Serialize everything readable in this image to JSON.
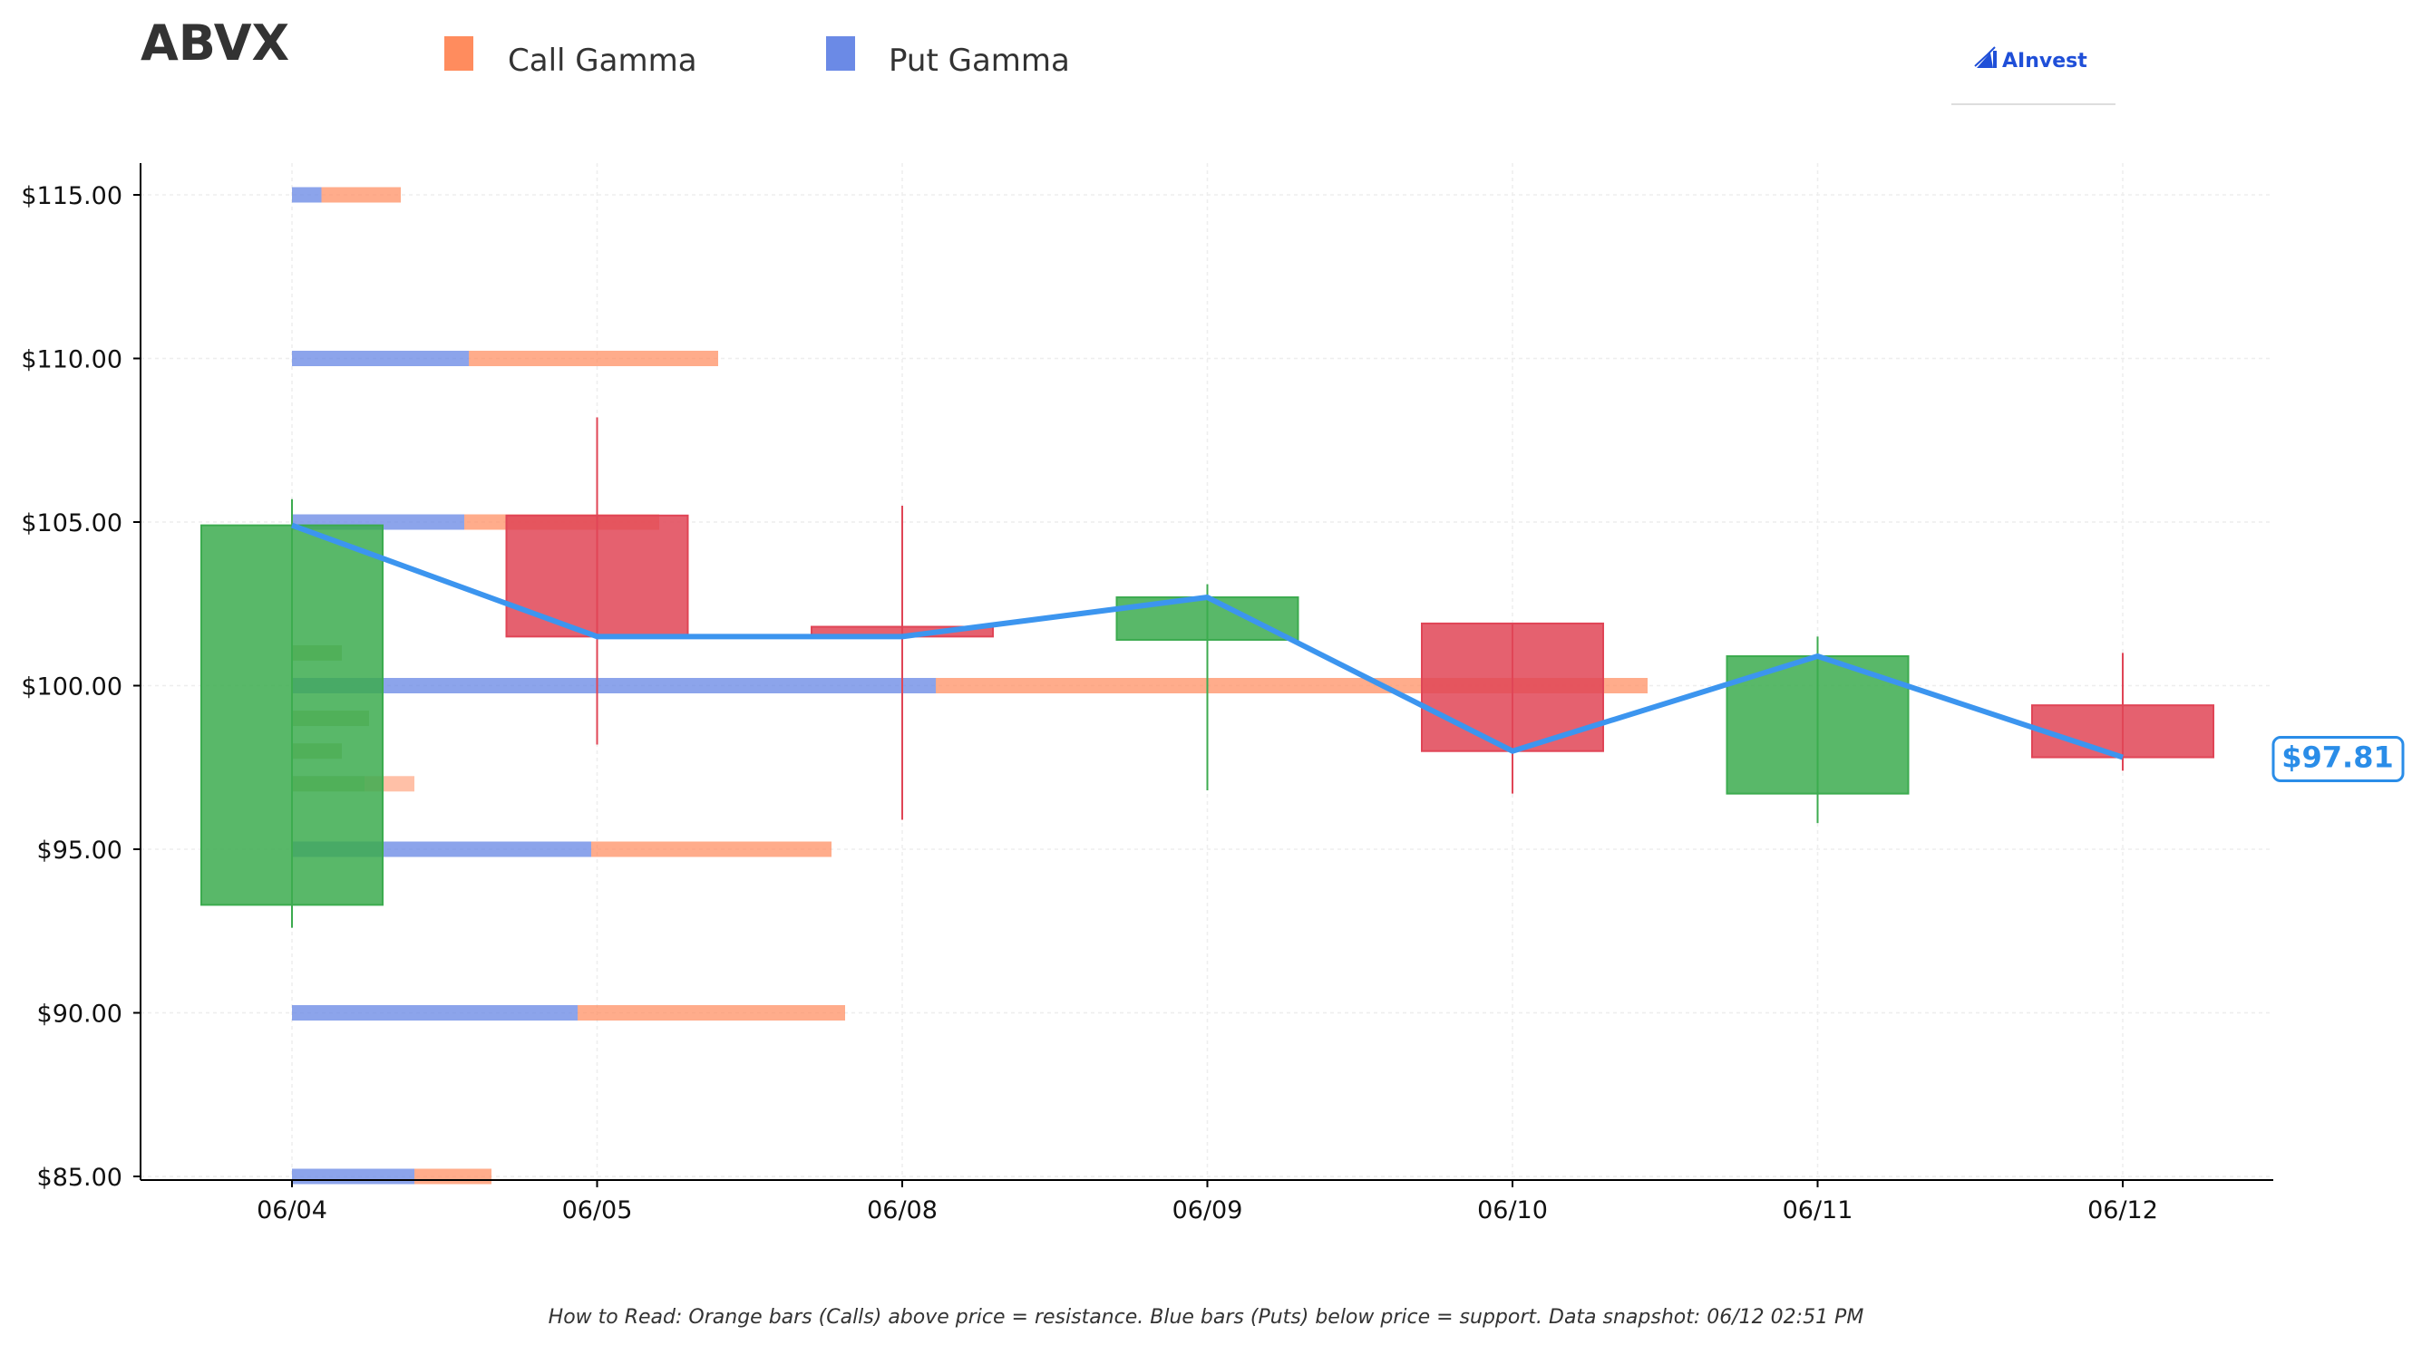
{
  "ticker": "ABVX",
  "brand": {
    "name": "AInvest",
    "color": "#1f4fd8"
  },
  "colors": {
    "call": "#ff8c5e",
    "put": "#6b8ae6",
    "up": "#3cab4f",
    "down": "#e04556",
    "price_line": "#3c95ef",
    "price_tag": "#2a8de8"
  },
  "legend": [
    {
      "label": "Call Gamma",
      "color": "#ff8c5e"
    },
    {
      "label": "Put Gamma",
      "color": "#6b8ae6"
    }
  ],
  "footnote": "How to Read: Orange bars (Calls) above price = resistance. Blue bars (Puts) below price = support. Data snapshot: 06/12 02:51 PM",
  "chart_data": {
    "type": "candlestick",
    "categories": [
      "06/04",
      "06/05",
      "06/08",
      "06/09",
      "06/10",
      "06/11",
      "06/12"
    ],
    "ylim": [
      85,
      116
    ],
    "yticks": [
      85,
      90,
      95,
      100,
      105,
      110,
      115
    ],
    "ytick_labels": [
      "$85.00",
      "$90.00",
      "$95.00",
      "$100.00",
      "$105.00",
      "$110.00",
      "$115.00"
    ],
    "grid": true,
    "legend_position": "top-left",
    "candles": [
      {
        "date": "06/04",
        "open": 93.3,
        "close": 104.9,
        "high": 105.7,
        "low": 92.6
      },
      {
        "date": "06/05",
        "open": 105.2,
        "close": 101.5,
        "high": 108.2,
        "low": 98.2
      },
      {
        "date": "06/08",
        "open": 101.8,
        "close": 101.5,
        "high": 105.5,
        "low": 95.9
      },
      {
        "date": "06/09",
        "open": 101.4,
        "close": 102.7,
        "high": 103.1,
        "low": 96.8
      },
      {
        "date": "06/10",
        "open": 101.9,
        "close": 98.0,
        "high": 101.9,
        "low": 96.7
      },
      {
        "date": "06/11",
        "open": 96.7,
        "close": 100.9,
        "high": 101.5,
        "low": 95.8
      },
      {
        "date": "06/12",
        "open": 99.4,
        "close": 97.81,
        "high": 101.0,
        "low": 97.4
      }
    ],
    "price_line": {
      "x": [
        "06/04",
        "06/05",
        "06/08",
        "06/09",
        "06/10",
        "06/11",
        "06/12"
      ],
      "y": [
        104.9,
        101.5,
        101.5,
        102.7,
        98.0,
        100.9,
        97.81
      ]
    },
    "gamma_bars": [
      {
        "strike": 115,
        "put": 0.065,
        "call": 0.175
      },
      {
        "strike": 110,
        "put": 0.39,
        "call": 0.55
      },
      {
        "strike": 105,
        "put": 0.38,
        "call": 0.43
      },
      {
        "strike": 100,
        "put": 1.42,
        "call": 1.57
      },
      {
        "strike": 95,
        "put": 0.66,
        "call": 0.53
      },
      {
        "strike": 90,
        "put": 0.63,
        "call": 0.59
      },
      {
        "strike": 85,
        "put": 0.27,
        "call": 0.17
      }
    ],
    "gamma_minor_bars": [
      {
        "strike": 101.0,
        "value": 0.11
      },
      {
        "strike": 99.0,
        "value": 0.17
      },
      {
        "strike": 98.0,
        "value": 0.11
      },
      {
        "strike": 97.0,
        "value": 0.16
      },
      {
        "strike": 97.0,
        "value": 0.11,
        "kind": "call"
      }
    ],
    "current_price": 97.81,
    "current_price_label": "$97.81"
  }
}
